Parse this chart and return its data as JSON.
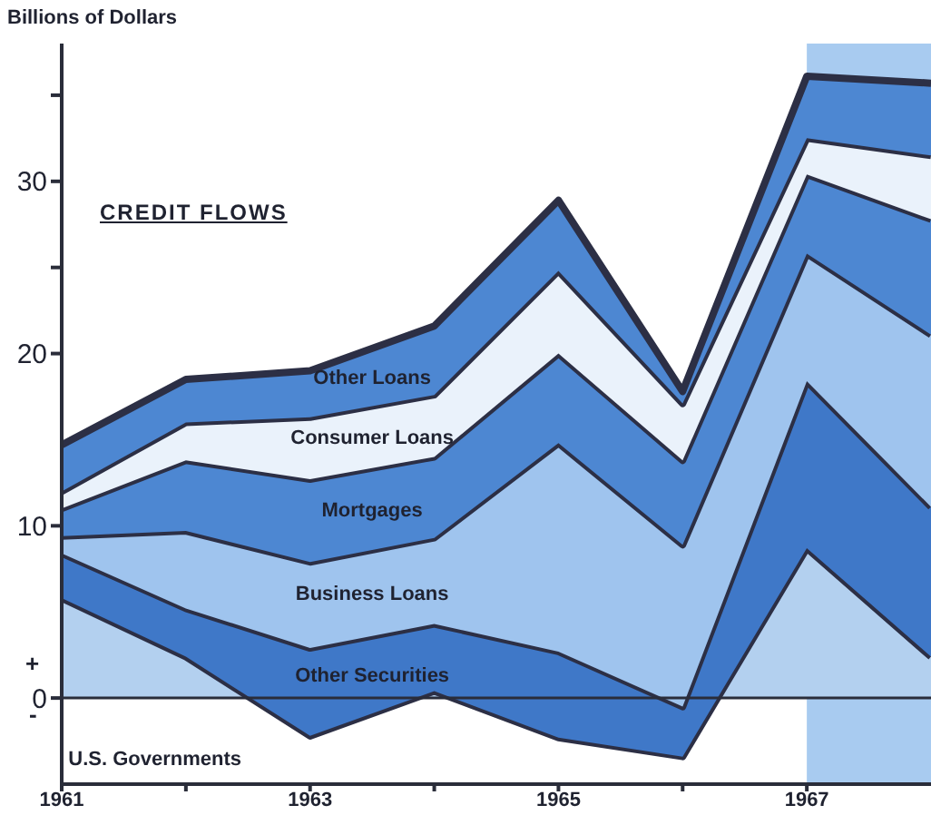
{
  "chart_data": {
    "type": "area",
    "stacked": true,
    "title": "CREDIT FLOWS",
    "ylabel": "Billions of Dollars",
    "x": [
      1961,
      1962,
      1963,
      1964,
      1965,
      1966,
      1967,
      1968
    ],
    "xlim": [
      1961,
      1968
    ],
    "xticks": [
      1961,
      {
        "value": 1962,
        "label": null
      },
      1963,
      {
        "value": 1964,
        "label": null
      },
      1965,
      {
        "value": 1966,
        "label": null
      },
      1967
    ],
    "ylim": [
      -5,
      38
    ],
    "yticks": [
      0,
      10,
      20,
      {
        "value": 25,
        "label": null
      },
      30,
      {
        "value": 35,
        "label": null
      }
    ],
    "series": [
      {
        "name": "U.S. Governments",
        "color": "#b3d0ef",
        "values": [
          5.8,
          2.4,
          -2.2,
          0.4,
          -2.3,
          -3.4,
          8.7,
          2.4
        ]
      },
      {
        "name": "Other Securities",
        "color": "#3f78c8",
        "values": [
          2.6,
          2.8,
          5.1,
          3.9,
          5.0,
          2.9,
          9.7,
          8.7
        ]
      },
      {
        "name": "Business Loans",
        "color": "#9fc4ee",
        "values": [
          1.0,
          4.5,
          5.0,
          5.0,
          12.1,
          9.4,
          7.4,
          10.0
        ]
      },
      {
        "name": "Mortgages",
        "color": "#4d87d2",
        "values": [
          1.6,
          4.1,
          4.8,
          4.7,
          5.2,
          4.9,
          4.6,
          6.7
        ]
      },
      {
        "name": "Consumer Loans",
        "color": "#eaf2fb",
        "values": [
          1.0,
          2.2,
          3.6,
          3.6,
          4.8,
          3.3,
          2.1,
          3.7
        ]
      },
      {
        "name": "Other Loans",
        "color": "#4d87d2",
        "values": [
          2.7,
          2.5,
          2.7,
          4.0,
          4.1,
          0.7,
          3.6,
          4.2
        ]
      }
    ],
    "ref_lines": [
      {
        "axis": "y",
        "value": 0,
        "color": "#2a2d3a"
      }
    ],
    "bands": [
      {
        "axis": "x",
        "from": 1967,
        "to": 1968,
        "color": "#a8cbf0"
      }
    ],
    "annotations": [
      "+",
      "-"
    ]
  }
}
